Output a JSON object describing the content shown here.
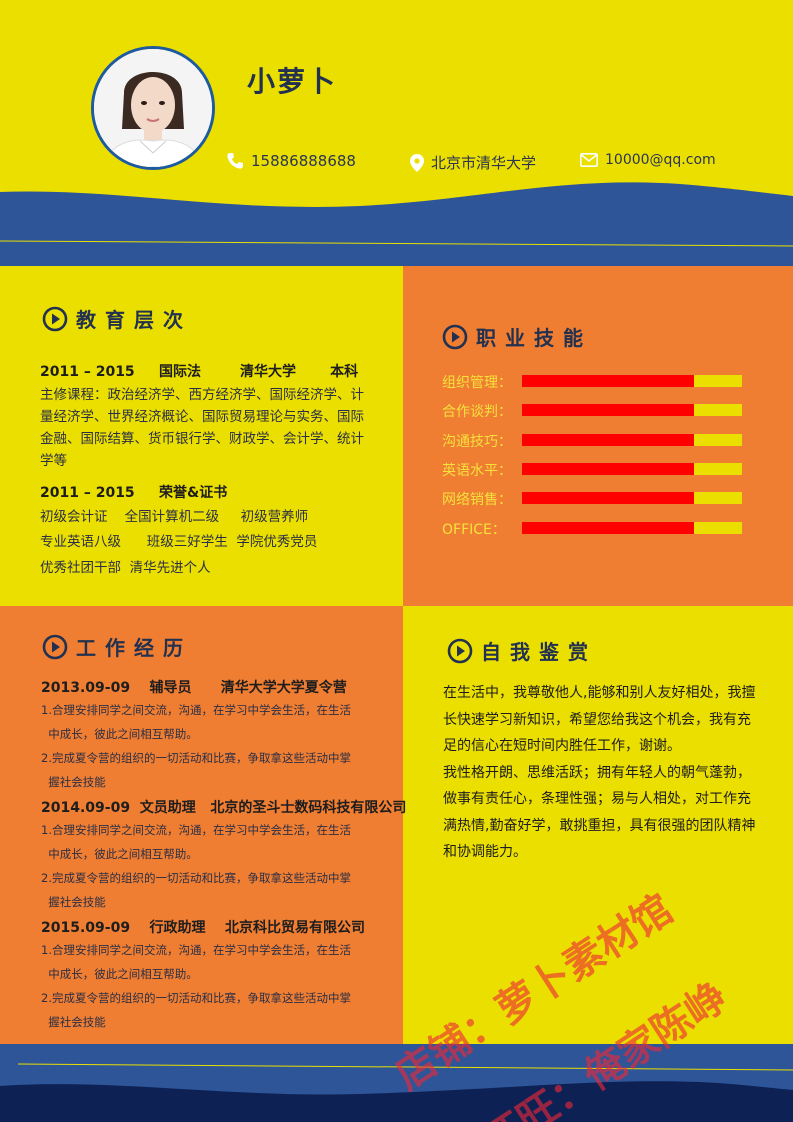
{
  "name": "小萝卜",
  "contact": {
    "phone": "15886888688",
    "location": "北京市清华大学",
    "email": "10000@qq.com"
  },
  "education": {
    "title": "教育层次",
    "row1": "2011 – 2015     国际法        清华大学       本科",
    "courses": "主修课程：政治经济学、西方经济学、国际经济学、计量经济学、世界经济概论、国际贸易理论与实务、国际金融、国际结算、货币银行学、财政学、会计学、统计学等",
    "row2": "2011 – 2015     荣誉&证书",
    "certs": [
      "初级会计证    全国计算机二级     初级营养师",
      "专业英语八级      班级三好学生  学院优秀党员",
      "优秀社团干部  清华先进个人"
    ]
  },
  "skills": {
    "title": "职业技能",
    "items": [
      {
        "label": "组织管理：",
        "level": 0.78
      },
      {
        "label": "合作谈判：",
        "level": 0.78
      },
      {
        "label": "沟通技巧：",
        "level": 0.78
      },
      {
        "label": "英语水平：",
        "level": 0.78
      },
      {
        "label": "网络销售：",
        "level": 0.78
      },
      {
        "label": "OFFICE：",
        "level": 0.78
      }
    ]
  },
  "work": {
    "title": "工作经历",
    "jobs": [
      {
        "head": "2013.09-09    辅导员      清华大学大学夏令营",
        "lines": [
          "1.合理安排同学之间交流，沟通，在学习中学会生活，在生活",
          "  中成长，彼此之间相互帮助。",
          "2.完成夏令营的组织的一切活动和比赛，争取拿这些活动中掌",
          "  握社会技能"
        ]
      },
      {
        "head": "2014.09-09  文员助理   北京的圣斗士数码科技有限公司",
        "lines": [
          "1.合理安排同学之间交流，沟通，在学习中学会生活，在生活",
          "  中成长，彼此之间相互帮助。",
          "2.完成夏令营的组织的一切活动和比赛，争取拿这些活动中掌",
          "  握社会技能"
        ]
      },
      {
        "head": "2015.09-09    行政助理    北京科比贸易有限公司",
        "lines": [
          "1.合理安排同学之间交流，沟通，在学习中学会生活，在生活",
          "  中成长，彼此之间相互帮助。",
          "2.完成夏令营的组织的一切活动和比赛，争取拿这些活动中掌",
          "  握社会技能"
        ]
      }
    ]
  },
  "self": {
    "title": "自我鉴赏",
    "p1": "在生活中，我尊敬他人,能够和别人友好相处，我擅长快速学习新知识，希望您给我这个机会，我有充足的信心在短时间内胜任工作，谢谢。",
    "p2": "我性格开朗、思维活跃；拥有年轻人的朝气蓬勃，做事有责任心，条理性强；易与人相处，对工作充满热情,勤奋好学，敢挑重担，具有很强的团队精神和协调能力。"
  },
  "watermark": {
    "line1": "店铺：萝卜素材馆",
    "line2": "旺旺：俺家陈峥"
  },
  "colors": {
    "yellow": "#ebdf00",
    "orange": "#ef7d32",
    "navy": "#2e5597",
    "dark_navy": "#0d2155",
    "text_dark": "#22314f",
    "bar_fill": "#ff0000"
  }
}
